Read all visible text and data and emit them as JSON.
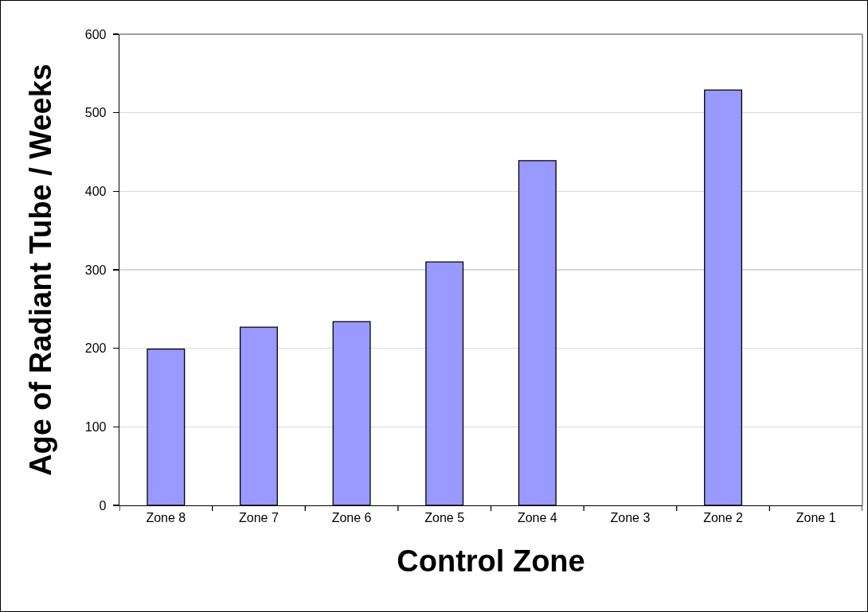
{
  "chart_data": {
    "type": "bar",
    "xlabel": "Control Zone",
    "ylabel": "Age of Radiant Tube / Weeks",
    "categories": [
      "Zone 8",
      "Zone 7",
      "Zone 6",
      "Zone 5",
      "Zone 4",
      "Zone 3",
      "Zone 2",
      "Zone 1"
    ],
    "values": [
      199,
      227,
      234,
      310,
      439,
      null,
      529,
      null
    ],
    "color": "#9999ff",
    "ylim": [
      0,
      600
    ],
    "yticks": [
      0,
      100,
      200,
      300,
      400,
      500,
      600
    ],
    "grid": "y"
  }
}
